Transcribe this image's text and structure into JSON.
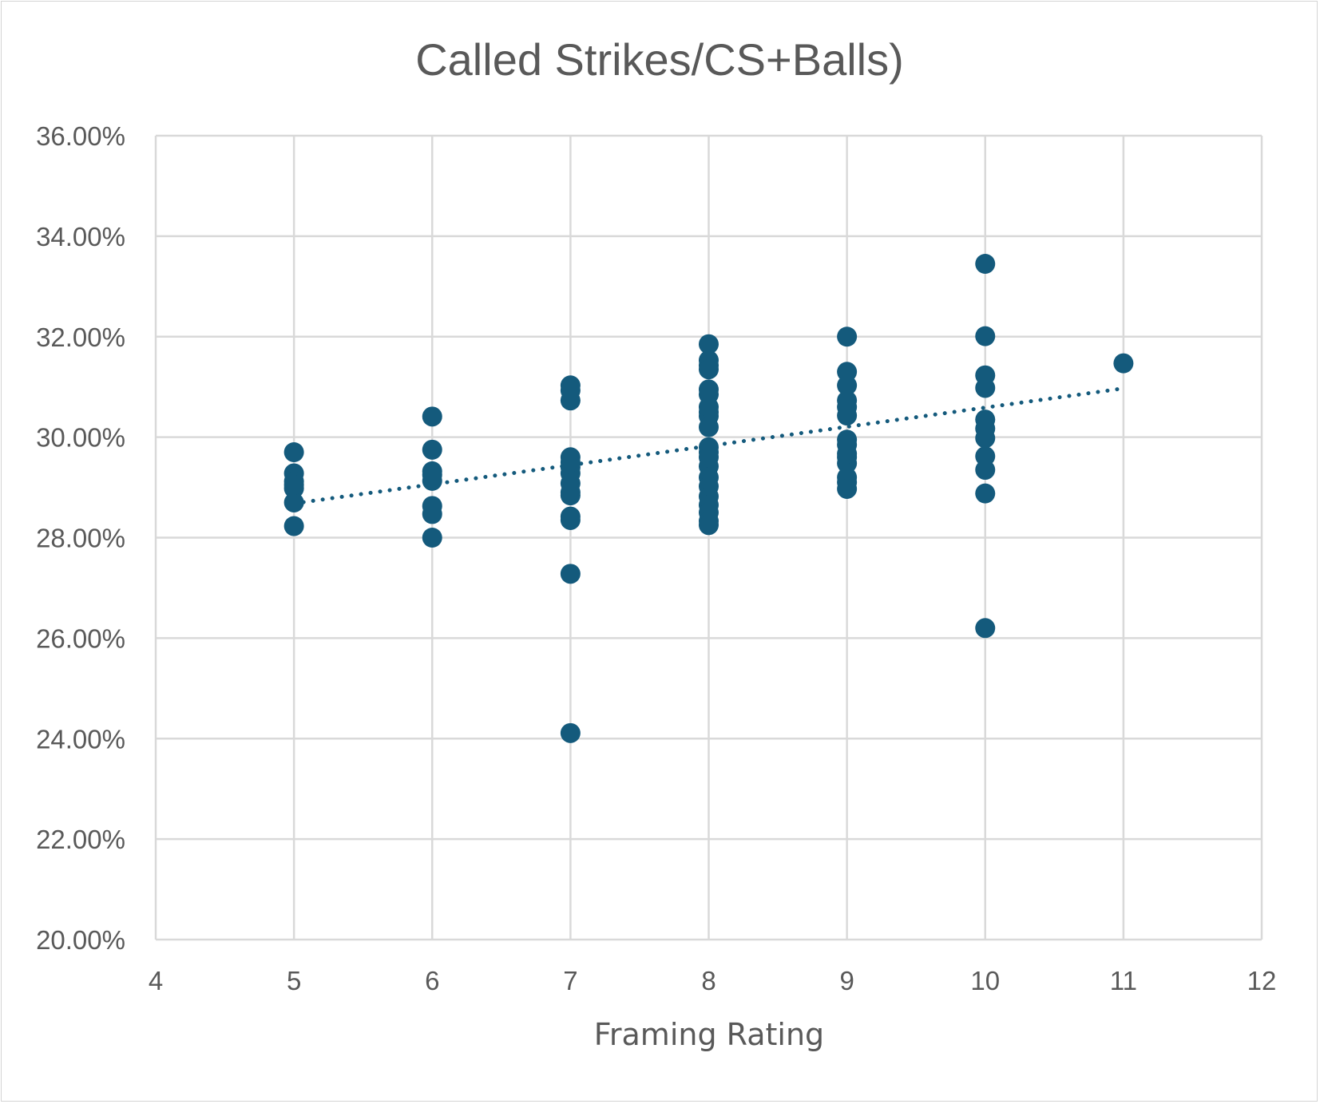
{
  "chart_data": {
    "type": "scatter",
    "title": "Called Strikes/CS+Balls)",
    "xlabel": "Framing Rating",
    "ylabel": "",
    "xlim": [
      4,
      12
    ],
    "ylim": [
      0.2,
      0.36
    ],
    "x_ticks": [
      4,
      5,
      6,
      7,
      8,
      9,
      10,
      11,
      12
    ],
    "x_tick_labels": [
      "4",
      "5",
      "6",
      "7",
      "8",
      "9",
      "10",
      "11",
      "12"
    ],
    "y_ticks": [
      0.2,
      0.22,
      0.24,
      0.26,
      0.28,
      0.3,
      0.32,
      0.34,
      0.36
    ],
    "y_tick_labels": [
      "20.00%",
      "22.00%",
      "24.00%",
      "26.00%",
      "28.00%",
      "30.00%",
      "32.00%",
      "34.00%",
      "36.00%"
    ],
    "grid": true,
    "legend": "none",
    "point_color": "#145a7c",
    "trendline": {
      "style": "dotted",
      "type": "linear",
      "x_range": [
        5,
        11
      ],
      "y_range": [
        0.2868,
        0.3097
      ]
    },
    "x": [
      5,
      5,
      5,
      5,
      5,
      5,
      5,
      6,
      6,
      6,
      6,
      6,
      6,
      6,
      6,
      7,
      7,
      7,
      7,
      7,
      7,
      7,
      7,
      7,
      7,
      7,
      7,
      7,
      7,
      8,
      8,
      8,
      8,
      8,
      8,
      8,
      8,
      8,
      8,
      8,
      8,
      8,
      8,
      8,
      8,
      8,
      8,
      8,
      8,
      8,
      9,
      9,
      9,
      9,
      9,
      9,
      9,
      9,
      9,
      9,
      9,
      9,
      9,
      9,
      10,
      10,
      10,
      10,
      10,
      10,
      10,
      10,
      10,
      10,
      10,
      11
    ],
    "y": [
      0.297,
      0.2928,
      0.2912,
      0.2898,
      0.287,
      0.2823,
      0.2905,
      0.3041,
      0.2975,
      0.2932,
      0.2913,
      0.2863,
      0.2847,
      0.28,
      0.2925,
      0.3103,
      0.3093,
      0.3073,
      0.296,
      0.294,
      0.2928,
      0.2908,
      0.289,
      0.2884,
      0.2842,
      0.2835,
      0.2728,
      0.2411,
      0.295,
      0.3185,
      0.3153,
      0.3143,
      0.3135,
      0.3095,
      0.3085,
      0.305,
      0.3042,
      0.302,
      0.298,
      0.297,
      0.2942,
      0.292,
      0.2902,
      0.2882,
      0.2865,
      0.285,
      0.2833,
      0.2825,
      0.306,
      0.296,
      0.32,
      0.313,
      0.3103,
      0.3073,
      0.306,
      0.3043,
      0.2995,
      0.2985,
      0.296,
      0.2948,
      0.292,
      0.291,
      0.2897,
      0.2967,
      0.3345,
      0.3201,
      0.3123,
      0.3098,
      0.3035,
      0.3017,
      0.2998,
      0.2935,
      0.2888,
      0.262,
      0.2962,
      0.3147
    ]
  }
}
